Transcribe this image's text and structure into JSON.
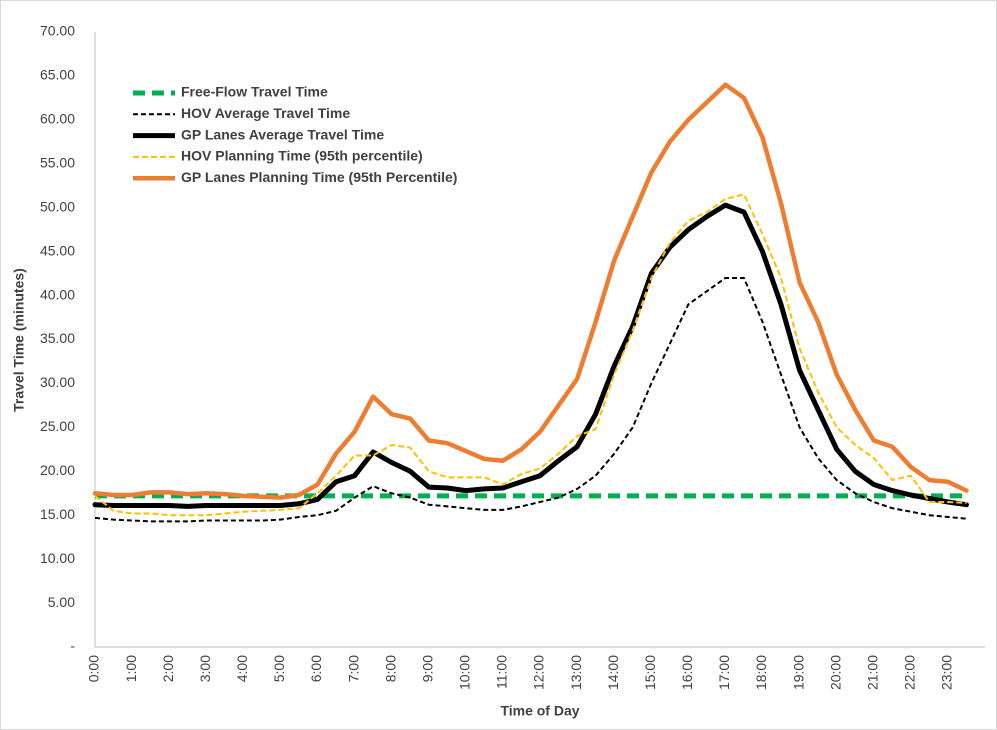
{
  "chart_data": {
    "type": "line",
    "xlabel": "Time of Day",
    "ylabel": "Travel Time (minutes)",
    "categories": [
      "0:00",
      null,
      "1:00",
      null,
      "2:00",
      null,
      "3:00",
      null,
      "4:00",
      null,
      "5:00",
      null,
      "6:00",
      null,
      "7:00",
      null,
      "8:00",
      null,
      "9:00",
      null,
      "10:00",
      null,
      "11:00",
      null,
      "12:00",
      null,
      "13:00",
      null,
      "14:00",
      null,
      "15:00",
      null,
      "16:00",
      null,
      "17:00",
      null,
      "18:00",
      null,
      "19:00",
      null,
      "20:00",
      null,
      "21:00",
      null,
      "22:00",
      null,
      "23:00",
      null
    ],
    "ylim": [
      0,
      70
    ],
    "yticks": [
      {
        "value": 0,
        "label": "-"
      },
      {
        "value": 5,
        "label": "5.00"
      },
      {
        "value": 10,
        "label": "10.00"
      },
      {
        "value": 15,
        "label": "15.00"
      },
      {
        "value": 20,
        "label": "20.00"
      },
      {
        "value": 25,
        "label": "25.00"
      },
      {
        "value": 30,
        "label": "30.00"
      },
      {
        "value": 35,
        "label": "35.00"
      },
      {
        "value": 40,
        "label": "40.00"
      },
      {
        "value": 45,
        "label": "45.00"
      },
      {
        "value": 50,
        "label": "50.00"
      },
      {
        "value": 55,
        "label": "55.00"
      },
      {
        "value": 60,
        "label": "60.00"
      },
      {
        "value": 65,
        "label": "65.00"
      },
      {
        "value": 70,
        "label": "70.00"
      }
    ],
    "grid": false,
    "legend": "upper left",
    "series": [
      {
        "name": "Free-Flow Travel Time",
        "color": "#00b050",
        "dashed": true,
        "values": [
          17.2,
          17.2,
          17.2,
          17.2,
          17.2,
          17.2,
          17.2,
          17.2,
          17.2,
          17.2,
          17.2,
          17.2,
          17.2,
          17.2,
          17.2,
          17.2,
          17.2,
          17.2,
          17.2,
          17.2,
          17.2,
          17.2,
          17.2,
          17.2,
          17.2,
          17.2,
          17.2,
          17.2,
          17.2,
          17.2,
          17.2,
          17.2,
          17.2,
          17.2,
          17.2,
          17.2,
          17.2,
          17.2,
          17.2,
          17.2,
          17.2,
          17.2,
          17.2,
          17.2,
          17.2,
          17.2,
          17.2,
          17.2
        ]
      },
      {
        "name": "HOV Average Travel Time",
        "color": "#000000",
        "dashed": true,
        "values": [
          14.7,
          14.5,
          14.4,
          14.3,
          14.3,
          14.3,
          14.4,
          14.4,
          14.4,
          14.4,
          14.5,
          14.8,
          15.0,
          15.5,
          17.0,
          18.3,
          17.5,
          17.0,
          16.2,
          16.0,
          15.8,
          15.6,
          15.6,
          16.0,
          16.5,
          17.0,
          18.0,
          19.5,
          22.0,
          25.0,
          30.0,
          34.5,
          39.0,
          40.5,
          42.0,
          42.0,
          37.0,
          31.0,
          25.0,
          21.5,
          19.0,
          17.5,
          16.5,
          15.8,
          15.4,
          15.0,
          14.8,
          14.6
        ]
      },
      {
        "name": "GP Lanes Average Travel Time",
        "color": "#000000",
        "dashed": false,
        "values": [
          16.2,
          16.1,
          16.1,
          16.1,
          16.1,
          16.0,
          16.1,
          16.1,
          16.1,
          16.1,
          16.1,
          16.3,
          16.8,
          18.8,
          19.5,
          22.2,
          21.0,
          20.0,
          18.2,
          18.1,
          17.8,
          18.0,
          18.1,
          18.8,
          19.5,
          21.2,
          22.8,
          26.5,
          32.0,
          36.5,
          42.5,
          45.5,
          47.5,
          49.0,
          50.3,
          49.5,
          45.0,
          39.0,
          31.5,
          27.0,
          22.5,
          20.0,
          18.5,
          17.8,
          17.3,
          16.9,
          16.5,
          16.2
        ]
      },
      {
        "name": "HOV Planning Time (95th percentile)",
        "color": "#ffc000",
        "dashed": true,
        "values": [
          17.2,
          15.5,
          15.2,
          15.2,
          15.0,
          15.0,
          15.0,
          15.2,
          15.4,
          15.5,
          15.6,
          15.8,
          17.5,
          19.5,
          21.8,
          21.8,
          23.0,
          22.7,
          20.0,
          19.3,
          19.3,
          19.3,
          18.5,
          19.7,
          20.3,
          22.0,
          24.0,
          24.8,
          31.0,
          36.0,
          42.0,
          46.0,
          48.5,
          49.5,
          51.0,
          51.5,
          47.0,
          42.0,
          34.0,
          29.0,
          25.0,
          23.0,
          21.5,
          19.0,
          19.5,
          16.5,
          16.5,
          16.4
        ]
      },
      {
        "name": "GP Lanes Planning Time (95th Percentile)",
        "color": "#ed7d31",
        "dashed": false,
        "values": [
          17.5,
          17.3,
          17.3,
          17.6,
          17.6,
          17.4,
          17.5,
          17.4,
          17.2,
          17.1,
          17.0,
          17.3,
          18.5,
          22.0,
          24.5,
          28.5,
          26.5,
          26.0,
          23.5,
          23.2,
          22.3,
          21.4,
          21.2,
          22.5,
          24.5,
          27.5,
          30.5,
          37.0,
          44.0,
          49.0,
          54.0,
          57.5,
          60.0,
          62.0,
          64.0,
          62.5,
          58.0,
          50.5,
          41.5,
          37.0,
          31.0,
          27.0,
          23.5,
          22.8,
          20.5,
          19.0,
          18.8,
          17.8
        ]
      }
    ]
  }
}
